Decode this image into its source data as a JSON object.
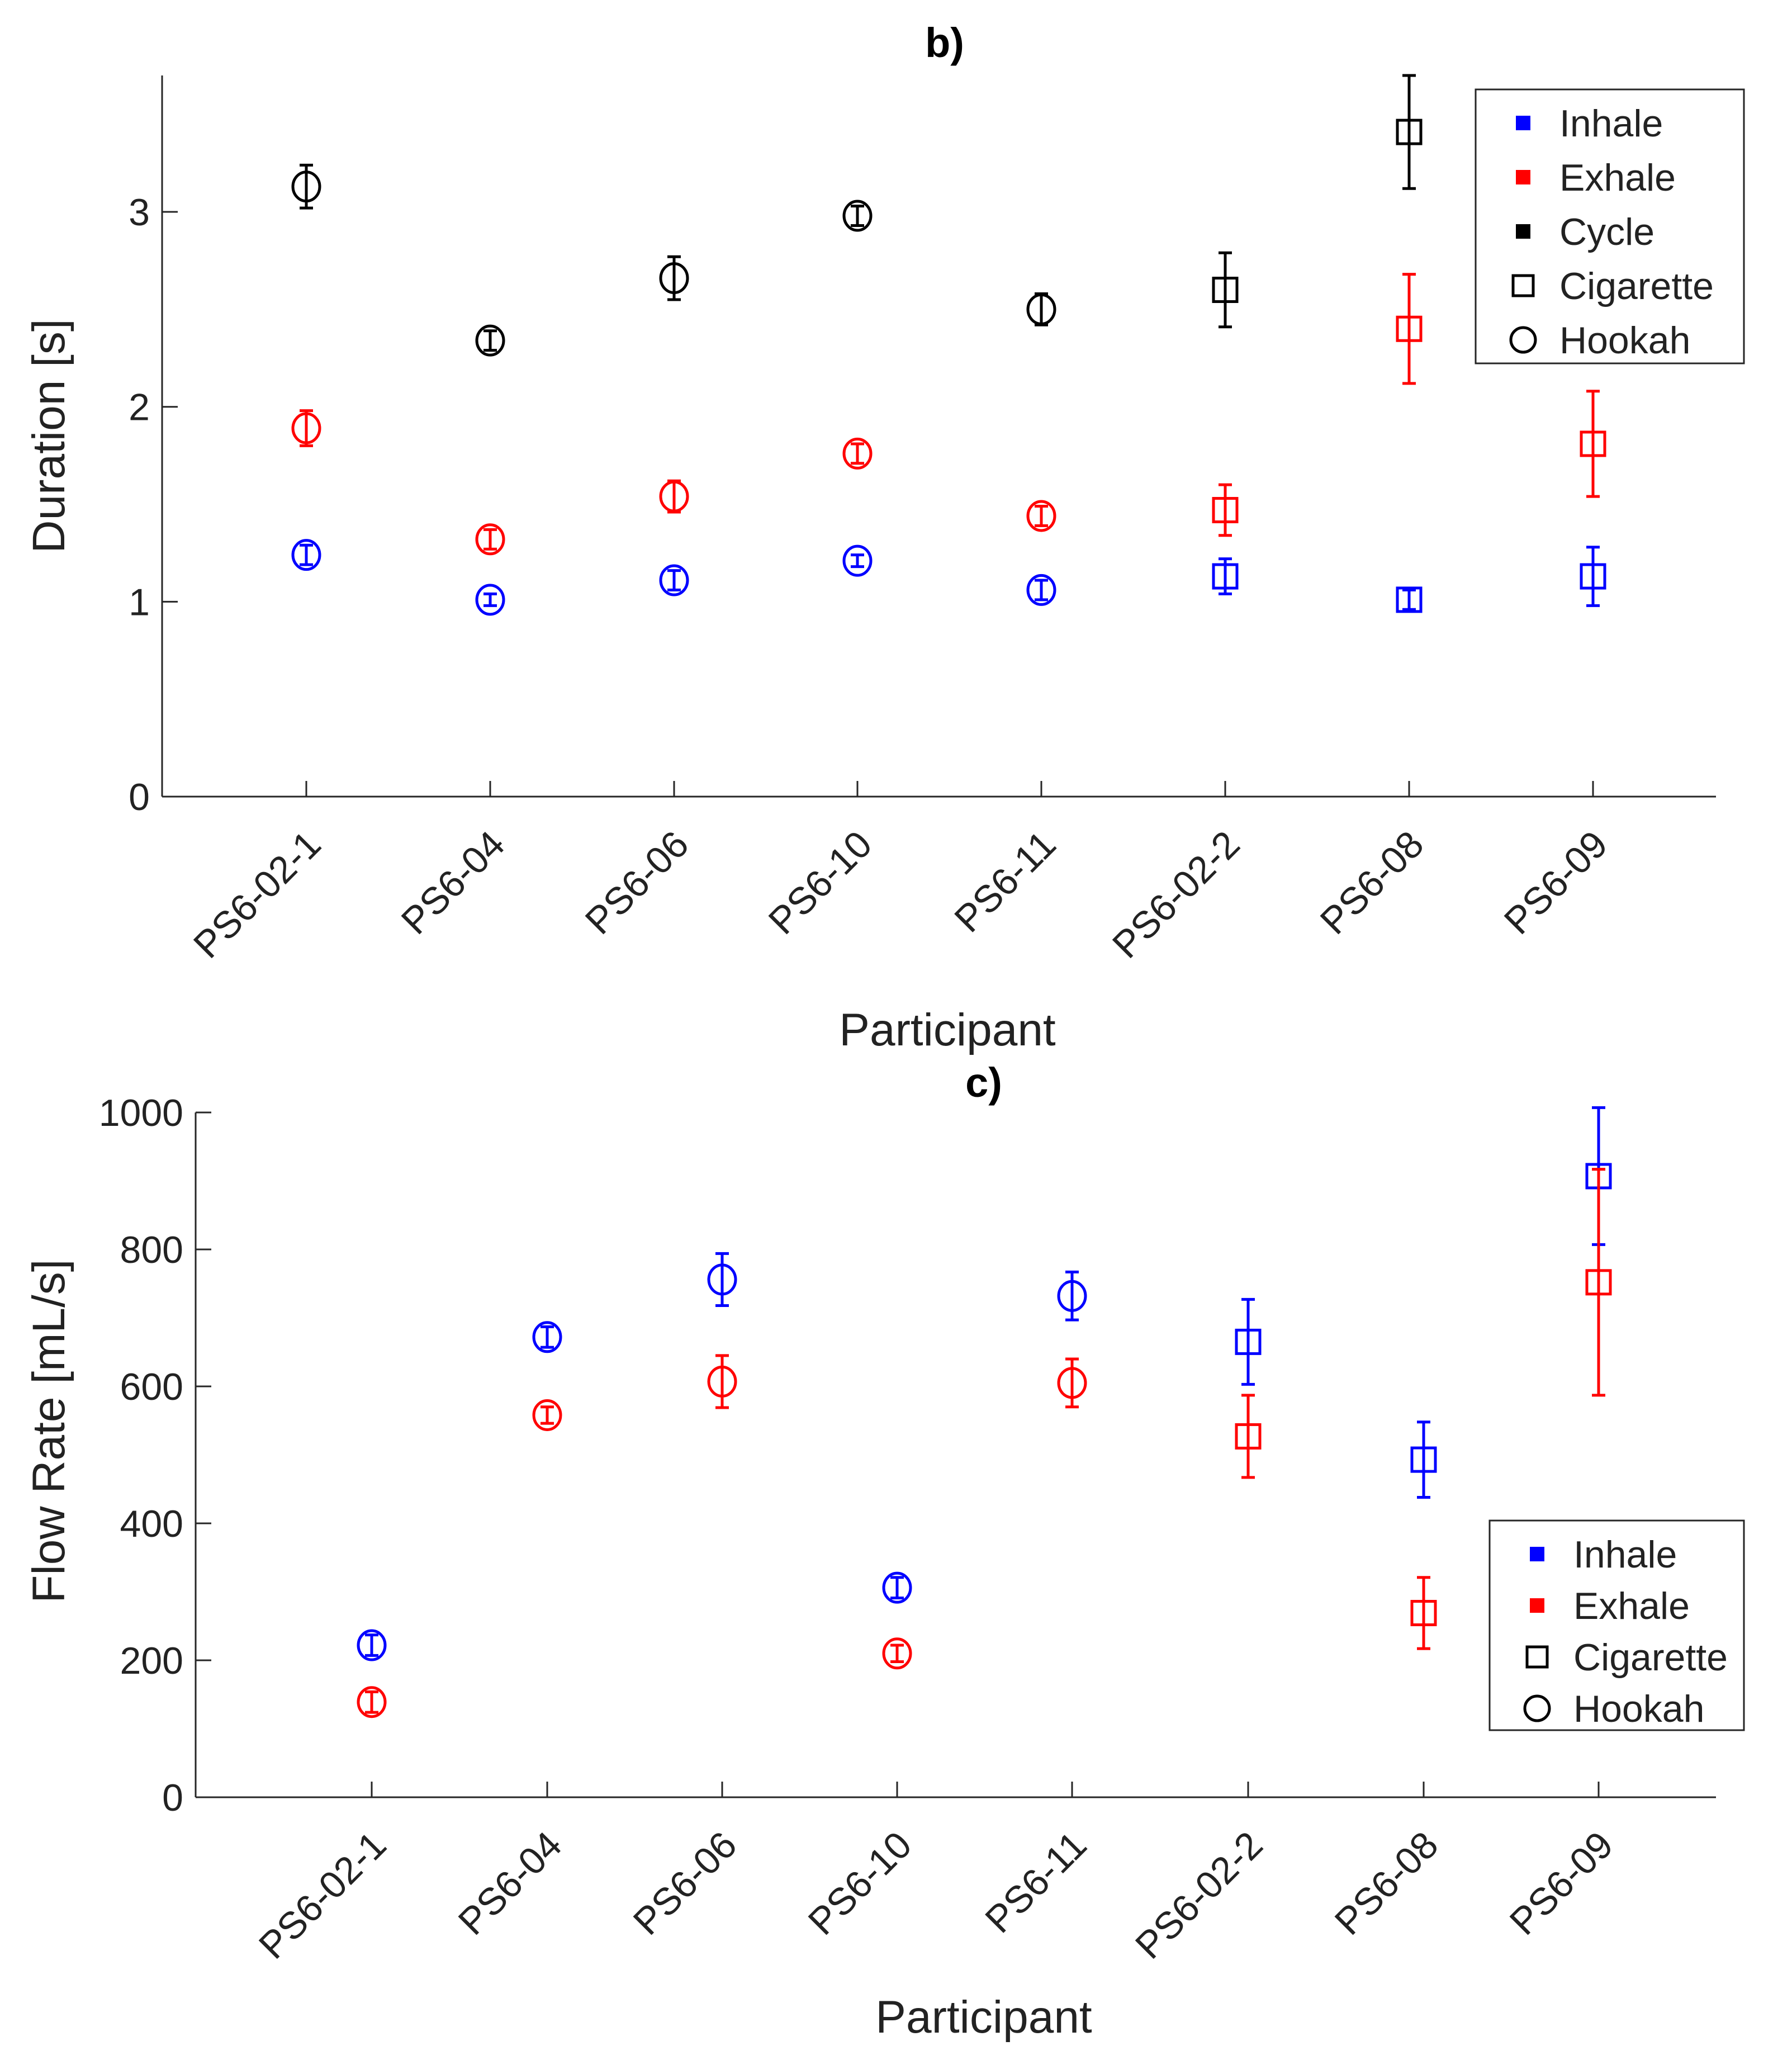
{
  "chart_data": [
    {
      "type": "scatter",
      "title": "b)",
      "xlabel": "Participant",
      "ylabel": "Duration [s]",
      "ylim": [
        0,
        3.7
      ],
      "yticks": [
        0,
        1,
        2,
        3
      ],
      "categories": [
        "PS6-02-1",
        "PS6-04",
        "PS6-06",
        "PS6-10",
        "PS6-11",
        "PS6-02-2",
        "PS6-08",
        "PS6-09"
      ],
      "product": [
        "Hookah",
        "Hookah",
        "Hookah",
        "Hookah",
        "Hookah",
        "Cigarette",
        "Cigarette",
        "Cigarette"
      ],
      "series": [
        {
          "name": "Inhale",
          "color": "#0000FF",
          "values": [
            1.24,
            1.01,
            1.11,
            1.21,
            1.06,
            1.13,
            1.01,
            1.13
          ],
          "errors": [
            0.05,
            0.03,
            0.05,
            0.03,
            0.05,
            0.09,
            0.05,
            0.15
          ]
        },
        {
          "name": "Exhale",
          "color": "#FF0000",
          "values": [
            1.89,
            1.32,
            1.54,
            1.76,
            1.44,
            1.47,
            2.4,
            1.81
          ],
          "errors": [
            0.09,
            0.05,
            0.08,
            0.05,
            0.05,
            0.13,
            0.28,
            0.27
          ]
        },
        {
          "name": "Cycle",
          "color": "#000000",
          "values": [
            3.13,
            2.34,
            2.66,
            2.98,
            2.5,
            2.6,
            3.41,
            null
          ],
          "errors": [
            0.11,
            0.05,
            0.11,
            0.05,
            0.08,
            0.19,
            0.29,
            null
          ]
        }
      ],
      "legend": {
        "position": "top-right",
        "entries": [
          {
            "label": "Inhale",
            "marker": "filled-square",
            "color": "#0000FF"
          },
          {
            "label": "Exhale",
            "marker": "filled-square",
            "color": "#FF0000"
          },
          {
            "label": "Cycle",
            "marker": "filled-square",
            "color": "#000000"
          },
          {
            "label": "Cigarette",
            "marker": "open-square",
            "color": "#000000"
          },
          {
            "label": "Hookah",
            "marker": "open-circle",
            "color": "#000000"
          }
        ]
      }
    },
    {
      "type": "scatter",
      "title": "c)",
      "xlabel": "Participant",
      "ylabel": "Flow Rate [mL/s]",
      "ylim": [
        0,
        1000
      ],
      "yticks": [
        0,
        200,
        400,
        600,
        800,
        1000
      ],
      "categories": [
        "PS6-02-1",
        "PS6-04",
        "PS6-06",
        "PS6-10",
        "PS6-11",
        "PS6-02-2",
        "PS6-08",
        "PS6-09"
      ],
      "product": [
        "Hookah",
        "Hookah",
        "Hookah",
        "Hookah",
        "Hookah",
        "Cigarette",
        "Cigarette",
        "Cigarette"
      ],
      "series": [
        {
          "name": "Inhale",
          "color": "#0000FF",
          "values": [
            222,
            672,
            756,
            306,
            732,
            665,
            493,
            907
          ],
          "errors": [
            15,
            15,
            38,
            15,
            35,
            62,
            55,
            100
          ]
        },
        {
          "name": "Exhale",
          "color": "#FF0000",
          "values": [
            139,
            558,
            607,
            210,
            605,
            527,
            269,
            752
          ],
          "errors": [
            15,
            12,
            38,
            12,
            35,
            60,
            52,
            165
          ]
        }
      ],
      "legend": {
        "position": "bottom-right",
        "entries": [
          {
            "label": "Inhale",
            "marker": "filled-square",
            "color": "#0000FF"
          },
          {
            "label": "Exhale",
            "marker": "filled-square",
            "color": "#FF0000"
          },
          {
            "label": "Cigarette",
            "marker": "open-square",
            "color": "#000000"
          },
          {
            "label": "Hookah",
            "marker": "open-circle",
            "color": "#000000"
          }
        ]
      }
    }
  ]
}
